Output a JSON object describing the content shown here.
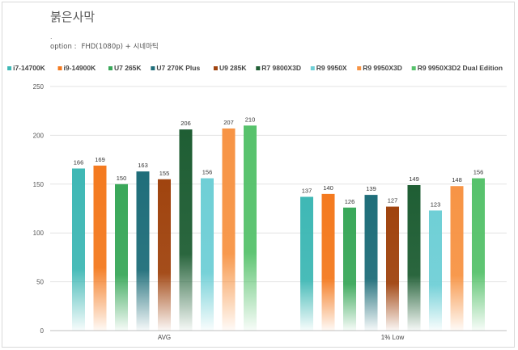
{
  "header": {
    "title": "붉은사막",
    "dot": ".",
    "option_label": "option :",
    "option_value": "FHD(1080p) + 시네마틱"
  },
  "chart_data": {
    "type": "bar",
    "categories": [
      "AVG",
      "1% Low"
    ],
    "series": [
      {
        "name": "i7-14700K",
        "color": "#3fb8b5",
        "values": [
          166,
          137
        ]
      },
      {
        "name": "i9-14900K",
        "color": "#f47a1f",
        "values": [
          169,
          140
        ]
      },
      {
        "name": "U7 265K",
        "color": "#3aa85a",
        "values": [
          150,
          126
        ]
      },
      {
        "name": "U7 270K Plus",
        "color": "#1f6e7a",
        "values": [
          163,
          139
        ]
      },
      {
        "name": "U9 285K",
        "color": "#a0440f",
        "values": [
          155,
          127
        ]
      },
      {
        "name": "R7 9800X3D",
        "color": "#1f5e34",
        "values": [
          206,
          149
        ]
      },
      {
        "name": "R9 9950X",
        "color": "#6fcfd6",
        "values": [
          156,
          123
        ]
      },
      {
        "name": "R9 9950X3D",
        "color": "#f79445",
        "values": [
          207,
          148
        ]
      },
      {
        "name": "R9 9950X3D2 Dual Edition",
        "color": "#57c26c",
        "values": [
          210,
          156
        ]
      }
    ],
    "ylim": [
      0,
      250
    ],
    "yticks": [
      0,
      50,
      100,
      150,
      200,
      250
    ],
    "grid": true,
    "legend_position": "top"
  }
}
